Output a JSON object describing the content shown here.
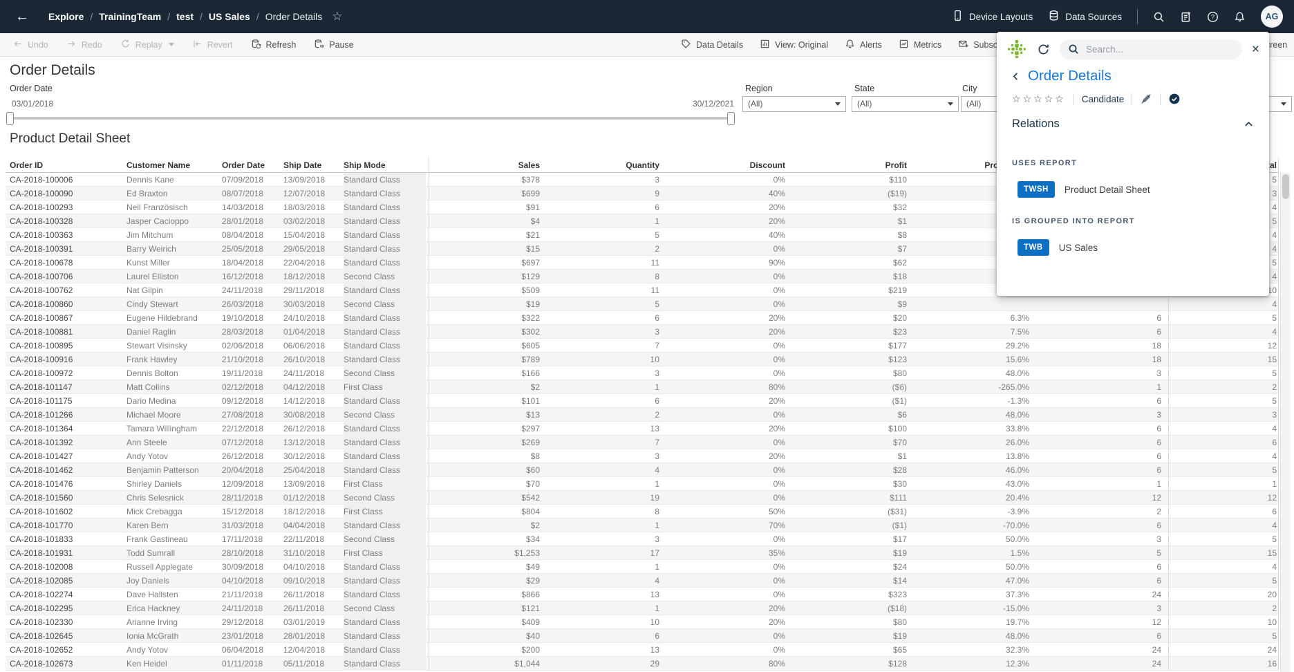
{
  "nav": {
    "breadcrumb": [
      "Explore",
      "TrainingTeam",
      "test",
      "US Sales",
      "Order Details"
    ],
    "separator": "/",
    "right_items": [
      {
        "icon": "phone-icon",
        "label": "Device Layouts"
      },
      {
        "icon": "database-icon",
        "label": "Data Sources"
      }
    ],
    "icon_buttons": [
      "search-icon",
      "sheets-icon",
      "help-icon",
      "notifications-icon"
    ],
    "avatar": "AG"
  },
  "toolbar": {
    "left": [
      {
        "icon": "undo-icon",
        "label": "Undo",
        "disabled": true
      },
      {
        "icon": "redo-icon",
        "label": "Redo",
        "disabled": true
      },
      {
        "icon": "replay-icon",
        "label": "Replay",
        "disabled": true,
        "caret": true
      },
      {
        "icon": "revert-icon",
        "label": "Revert",
        "disabled": true
      },
      {
        "icon": "refresh-db-icon",
        "label": "Refresh",
        "disabled": false
      },
      {
        "icon": "pause-db-icon",
        "label": "Pause",
        "disabled": false
      }
    ],
    "right": [
      {
        "icon": "tag-icon",
        "label": "Data Details"
      },
      {
        "icon": "view-bars-icon",
        "label": "View: Original"
      },
      {
        "icon": "bell-icon",
        "label": "Alerts"
      },
      {
        "icon": "metrics-icon",
        "label": "Metrics"
      },
      {
        "icon": "envelope-icon",
        "label": "Subscribe"
      }
    ],
    "full_screen_label": "Full Screen"
  },
  "page": {
    "title": "Order Details",
    "viz_title": "Product Detail Sheet"
  },
  "filters": {
    "date": {
      "label": "Order Date",
      "start": "03/01/2018",
      "end": "30/12/2021"
    },
    "dropdowns": [
      {
        "label": "Region",
        "value": "(All)"
      },
      {
        "label": "State",
        "value": "(All)"
      },
      {
        "label": "City",
        "value": "(All)"
      },
      {
        "label": "",
        "value": ""
      }
    ]
  },
  "table": {
    "columns": [
      "Order ID",
      "Customer Name",
      "Order Date",
      "Ship Date",
      "Ship Mode",
      "Sales",
      "Quantity",
      "Discount",
      "Profit",
      "Profit Ratio",
      "",
      "Total"
    ],
    "rows": [
      [
        "CA-2018-100006",
        "Dennis Kane",
        "07/09/2018",
        "13/09/2018",
        "Standard Class",
        "$378",
        "3",
        "0%",
        "$110",
        "",
        "",
        "5"
      ],
      [
        "CA-2018-100090",
        "Ed Braxton",
        "08/07/2018",
        "12/07/2018",
        "Standard Class",
        "$699",
        "9",
        "40%",
        "($19)",
        "",
        "",
        "3"
      ],
      [
        "CA-2018-100293",
        "Neil Französisch",
        "14/03/2018",
        "18/03/2018",
        "Standard Class",
        "$91",
        "6",
        "20%",
        "$32",
        "",
        "",
        "4"
      ],
      [
        "CA-2018-100328",
        "Jasper Cacioppo",
        "28/01/2018",
        "03/02/2018",
        "Standard Class",
        "$4",
        "1",
        "20%",
        "$1",
        "",
        "",
        "5"
      ],
      [
        "CA-2018-100363",
        "Jim Mitchum",
        "08/04/2018",
        "15/04/2018",
        "Standard Class",
        "$21",
        "5",
        "40%",
        "$8",
        "",
        "",
        "4"
      ],
      [
        "CA-2018-100391",
        "Barry Weirich",
        "25/05/2018",
        "29/05/2018",
        "Standard Class",
        "$15",
        "2",
        "0%",
        "$7",
        "",
        "",
        "4"
      ],
      [
        "CA-2018-100678",
        "Kunst Miller",
        "18/04/2018",
        "22/04/2018",
        "Standard Class",
        "$697",
        "11",
        "90%",
        "$62",
        "",
        "",
        "5"
      ],
      [
        "CA-2018-100706",
        "Laurel Elliston",
        "16/12/2018",
        "18/12/2018",
        "Second Class",
        "$129",
        "8",
        "0%",
        "$18",
        "",
        "",
        "4"
      ],
      [
        "CA-2018-100762",
        "Nat Gilpin",
        "24/11/2018",
        "29/11/2018",
        "Standard Class",
        "$509",
        "11",
        "0%",
        "$219",
        "",
        "",
        "10"
      ],
      [
        "CA-2018-100860",
        "Cindy Stewart",
        "26/03/2018",
        "30/03/2018",
        "Second Class",
        "$19",
        "5",
        "0%",
        "$9",
        "",
        "",
        "4"
      ],
      [
        "CA-2018-100867",
        "Eugene Hildebrand",
        "19/10/2018",
        "24/10/2018",
        "Standard Class",
        "$322",
        "6",
        "20%",
        "$20",
        "6.3%",
        "6",
        "5"
      ],
      [
        "CA-2018-100881",
        "Daniel Raglin",
        "28/03/2018",
        "01/04/2018",
        "Standard Class",
        "$302",
        "3",
        "20%",
        "$23",
        "7.5%",
        "6",
        "4"
      ],
      [
        "CA-2018-100895",
        "Stewart Visinsky",
        "02/06/2018",
        "06/06/2018",
        "Standard Class",
        "$605",
        "7",
        "0%",
        "$177",
        "29.2%",
        "18",
        "12"
      ],
      [
        "CA-2018-100916",
        "Frank Hawley",
        "21/10/2018",
        "26/10/2018",
        "Standard Class",
        "$789",
        "10",
        "0%",
        "$123",
        "15.6%",
        "18",
        "15"
      ],
      [
        "CA-2018-100972",
        "Dennis Bolton",
        "19/11/2018",
        "24/11/2018",
        "Second Class",
        "$166",
        "3",
        "0%",
        "$80",
        "48.0%",
        "3",
        "5"
      ],
      [
        "CA-2018-101147",
        "Matt Collins",
        "02/12/2018",
        "04/12/2018",
        "First Class",
        "$2",
        "1",
        "80%",
        "($6)",
        "-265.0%",
        "1",
        "2"
      ],
      [
        "CA-2018-101175",
        "Dario Medina",
        "09/12/2018",
        "14/12/2018",
        "Standard Class",
        "$101",
        "6",
        "20%",
        "($1)",
        "-1.3%",
        "6",
        "5"
      ],
      [
        "CA-2018-101266",
        "Michael Moore",
        "27/08/2018",
        "30/08/2018",
        "Second Class",
        "$13",
        "2",
        "0%",
        "$6",
        "48.0%",
        "3",
        "3"
      ],
      [
        "CA-2018-101364",
        "Tamara Willingham",
        "22/12/2018",
        "26/12/2018",
        "Standard Class",
        "$297",
        "13",
        "20%",
        "$100",
        "33.8%",
        "6",
        "4"
      ],
      [
        "CA-2018-101392",
        "Ann Steele",
        "07/12/2018",
        "13/12/2018",
        "Standard Class",
        "$269",
        "7",
        "0%",
        "$70",
        "26.0%",
        "6",
        "6"
      ],
      [
        "CA-2018-101427",
        "Andy Yotov",
        "26/12/2018",
        "30/12/2018",
        "Standard Class",
        "$8",
        "3",
        "20%",
        "$1",
        "13.8%",
        "6",
        "4"
      ],
      [
        "CA-2018-101462",
        "Benjamin Patterson",
        "20/04/2018",
        "25/04/2018",
        "Standard Class",
        "$60",
        "4",
        "0%",
        "$28",
        "46.0%",
        "6",
        "5"
      ],
      [
        "CA-2018-101476",
        "Shirley Daniels",
        "12/09/2018",
        "13/09/2018",
        "First Class",
        "$70",
        "1",
        "0%",
        "$30",
        "43.0%",
        "1",
        "1"
      ],
      [
        "CA-2018-101560",
        "Chris Selesnick",
        "28/11/2018",
        "01/12/2018",
        "Second Class",
        "$542",
        "19",
        "0%",
        "$111",
        "20.4%",
        "12",
        "12"
      ],
      [
        "CA-2018-101602",
        "Mick Crebagga",
        "15/12/2018",
        "18/12/2018",
        "First Class",
        "$804",
        "8",
        "50%",
        "($31)",
        "-3.9%",
        "2",
        "6"
      ],
      [
        "CA-2018-101770",
        "Karen Bern",
        "31/03/2018",
        "04/04/2018",
        "Standard Class",
        "$2",
        "1",
        "70%",
        "($1)",
        "-70.0%",
        "6",
        "4"
      ],
      [
        "CA-2018-101833",
        "Frank Gastineau",
        "17/11/2018",
        "22/11/2018",
        "Second Class",
        "$34",
        "3",
        "0%",
        "$17",
        "50.0%",
        "3",
        "5"
      ],
      [
        "CA-2018-101931",
        "Todd Sumrall",
        "28/10/2018",
        "31/10/2018",
        "First Class",
        "$1,253",
        "17",
        "35%",
        "$19",
        "1.5%",
        "5",
        "15"
      ],
      [
        "CA-2018-102008",
        "Russell Applegate",
        "30/09/2018",
        "04/10/2018",
        "Standard Class",
        "$49",
        "1",
        "0%",
        "$24",
        "50.0%",
        "6",
        "4"
      ],
      [
        "CA-2018-102085",
        "Joy Daniels",
        "04/10/2018",
        "09/10/2018",
        "Standard Class",
        "$29",
        "4",
        "0%",
        "$14",
        "47.0%",
        "6",
        "5"
      ],
      [
        "CA-2018-102274",
        "Dave Hallsten",
        "21/11/2018",
        "26/11/2018",
        "Standard Class",
        "$866",
        "13",
        "0%",
        "$323",
        "37.3%",
        "24",
        "20"
      ],
      [
        "CA-2018-102295",
        "Erica Hackney",
        "24/11/2018",
        "26/11/2018",
        "Second Class",
        "$121",
        "1",
        "20%",
        "($18)",
        "-15.0%",
        "3",
        "2"
      ],
      [
        "CA-2018-102330",
        "Arianne Irving",
        "29/12/2018",
        "03/01/2019",
        "Standard Class",
        "$409",
        "10",
        "20%",
        "$80",
        "19.7%",
        "12",
        "10"
      ],
      [
        "CA-2018-102645",
        "Ionia McGrath",
        "23/01/2018",
        "28/01/2018",
        "Standard Class",
        "$40",
        "6",
        "0%",
        "$19",
        "48.0%",
        "6",
        "5"
      ],
      [
        "CA-2018-102652",
        "Andy Yotov",
        "06/04/2018",
        "12/04/2018",
        "Standard Class",
        "$200",
        "13",
        "0%",
        "$65",
        "32.3%",
        "24",
        "24"
      ],
      [
        "CA-2018-102673",
        "Ken Heidel",
        "01/11/2018",
        "05/11/2018",
        "Standard Class",
        "$1,044",
        "29",
        "80%",
        "$128",
        "12.3%",
        "24",
        "16"
      ]
    ]
  },
  "panel": {
    "search_placeholder": "Search...",
    "title": "Order Details",
    "stars": 5,
    "status": "Candidate",
    "relations_label": "Relations",
    "sections": [
      {
        "heading": "USES REPORT",
        "items": [
          {
            "badge": "TWSH",
            "name": "Product Detail Sheet"
          }
        ]
      },
      {
        "heading": "IS GROUPED INTO REPORT",
        "items": [
          {
            "badge": "TWB",
            "name": "US Sales"
          }
        ]
      }
    ]
  },
  "colors": {
    "nav_bg": "#1b2734",
    "accent_blue": "#1779d8",
    "badge_blue": "#0b6fc4",
    "logo_green": "#7cb82f",
    "row_band": "#f5f5f5"
  }
}
